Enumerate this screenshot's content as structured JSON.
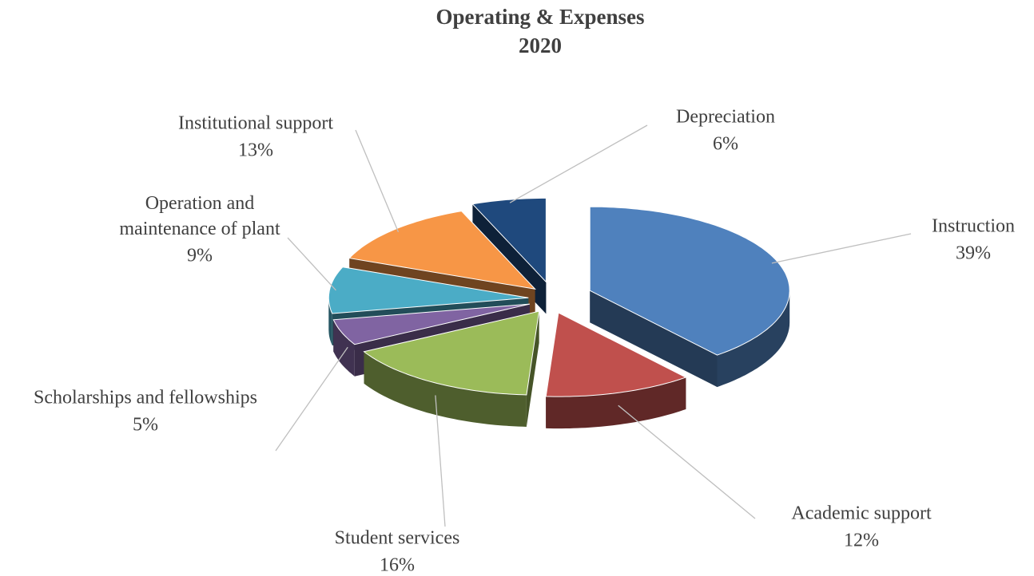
{
  "chart_data": {
    "type": "pie3d",
    "title": "Operating & Expenses",
    "subtitle": "2020",
    "categories": [
      "Instruction",
      "Academic support",
      "Student services",
      "Scholarships and fellowships",
      "Operation and maintenance of plant",
      "Institutional support",
      "Depreciation"
    ],
    "values": [
      39,
      12,
      16,
      5,
      9,
      13,
      6
    ],
    "value_labels": [
      "39%",
      "12%",
      "16%",
      "5%",
      "9%",
      "13%",
      "6%"
    ],
    "colors": [
      "#4f81bd",
      "#c0504d",
      "#9bbb59",
      "#8064a2",
      "#4bacc6",
      "#f79646",
      "#1f497d"
    ]
  }
}
